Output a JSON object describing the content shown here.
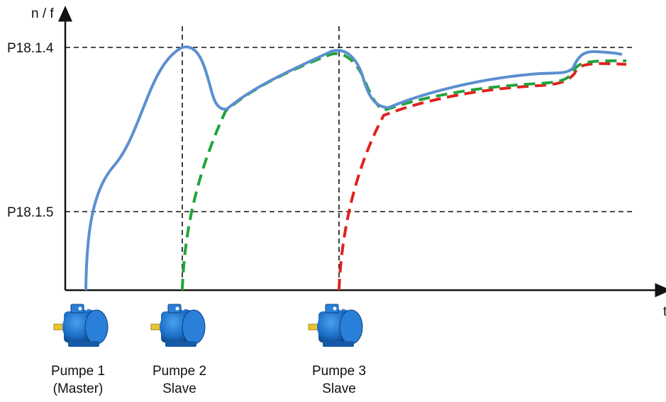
{
  "axis": {
    "y_label": "n / f",
    "x_label": "t"
  },
  "levels": {
    "upper": "P18.1.4",
    "lower": "P18.1.5"
  },
  "pumps": [
    {
      "name": "Pumpe 1",
      "role": "(Master)"
    },
    {
      "name": "Pumpe 2",
      "role": "Slave"
    },
    {
      "name": "Pumpe 3",
      "role": "Slave"
    }
  ],
  "colors": {
    "master_curve": "#5b8fd0",
    "slave_1_curve": "#22a33a",
    "slave_2_curve": "#e0221e",
    "guide_lines": "#111111",
    "motor_body": "#1d6fc7",
    "motor_shaft": "#e8c530"
  },
  "icons": [
    "motor-icon",
    "motor-icon",
    "motor-icon"
  ]
}
